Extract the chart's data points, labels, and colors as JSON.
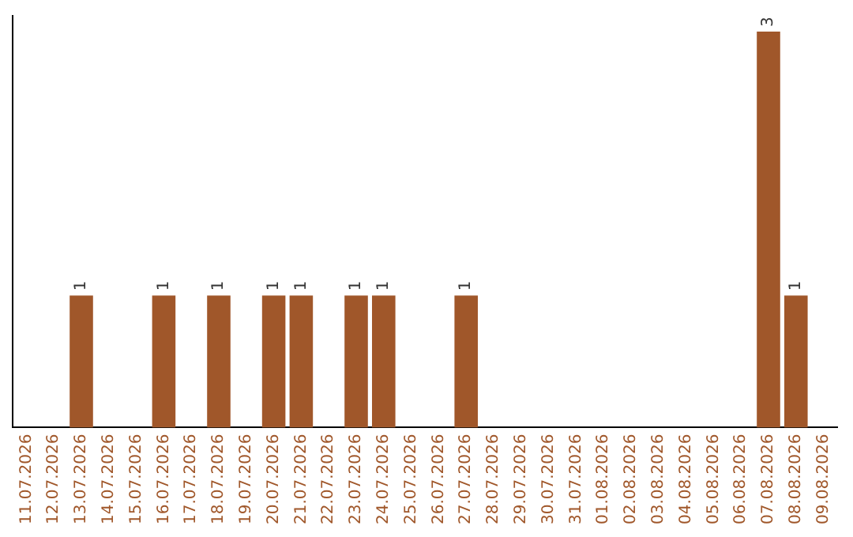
{
  "chart_data": {
    "type": "bar",
    "categories": [
      "11.07.2026",
      "12.07.2026",
      "13.07.2026",
      "14.07.2026",
      "15.07.2026",
      "16.07.2026",
      "17.07.2026",
      "18.07.2026",
      "19.07.2026",
      "20.07.2026",
      "21.07.2026",
      "22.07.2026",
      "23.07.2026",
      "24.07.2026",
      "25.07.2026",
      "26.07.2026",
      "27.07.2026",
      "28.07.2026",
      "29.07.2026",
      "30.07.2026",
      "31.07.2026",
      "01.08.2026",
      "02.08.2026",
      "03.08.2026",
      "04.08.2026",
      "05.08.2026",
      "06.08.2026",
      "07.08.2026",
      "08.08.2026",
      "09.08.2026"
    ],
    "values": [
      0,
      0,
      1,
      0,
      0,
      1,
      0,
      1,
      0,
      1,
      1,
      0,
      1,
      1,
      0,
      0,
      1,
      0,
      0,
      0,
      0,
      0,
      0,
      0,
      0,
      0,
      0,
      3,
      1,
      0
    ],
    "value_labels": [
      null,
      null,
      "1",
      null,
      null,
      "1",
      null,
      "1",
      null,
      "1",
      "1",
      null,
      "1",
      "1",
      null,
      null,
      "1",
      null,
      null,
      null,
      null,
      null,
      null,
      null,
      null,
      null,
      null,
      "3",
      "1",
      null
    ],
    "color": "#a0572a",
    "grid": false,
    "legend": false,
    "tick_labels": "x"
  }
}
